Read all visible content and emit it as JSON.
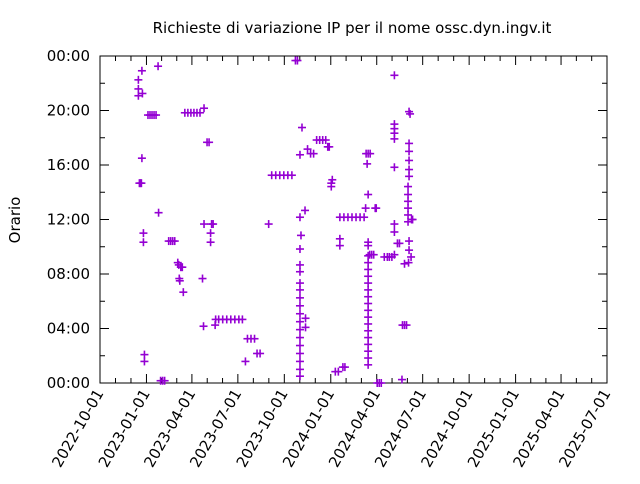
{
  "chart_data": {
    "type": "scatter",
    "title": "Richieste di variazione IP per il nome ossc.dyn.ingv.it",
    "xlabel": "",
    "ylabel": "Orario",
    "x_range": [
      "2022-10-01",
      "2025-07-01"
    ],
    "x_tick_labels": [
      "2022-10-01",
      "2023-01-01",
      "2023-04-01",
      "2023-07-01",
      "2023-10-01",
      "2024-01-01",
      "2024-04-01",
      "2024-07-01",
      "2024-10-01",
      "2025-01-01",
      "2025-04-01",
      "2025-07-01"
    ],
    "y_range": [
      "00:00",
      "24:00"
    ],
    "y_tick_labels": [
      "00:00",
      "04:00",
      "08:00",
      "12:00",
      "16:00",
      "20:00",
      "00:00"
    ],
    "grid": false,
    "legend": "none",
    "point_color": "#9400d3",
    "points": [
      {
        "x": "2022-12-16",
        "y": "22:15"
      },
      {
        "x": "2022-12-16",
        "y": "21:35"
      },
      {
        "x": "2022-12-16",
        "y": "21:05"
      },
      {
        "x": "2022-12-18",
        "y": "14:40"
      },
      {
        "x": "2022-12-20",
        "y": "14:40"
      },
      {
        "x": "2022-12-22",
        "y": "14:40"
      },
      {
        "x": "2022-12-23",
        "y": "22:55"
      },
      {
        "x": "2022-12-24",
        "y": "21:15"
      },
      {
        "x": "2022-12-23",
        "y": "16:30"
      },
      {
        "x": "2022-12-26",
        "y": "11:00"
      },
      {
        "x": "2022-12-26",
        "y": "10:20"
      },
      {
        "x": "2022-12-28",
        "y": "02:05"
      },
      {
        "x": "2022-12-28",
        "y": "01:35"
      },
      {
        "x": "2023-01-04",
        "y": "19:40"
      },
      {
        "x": "2023-01-08",
        "y": "19:40"
      },
      {
        "x": "2023-01-12",
        "y": "19:40"
      },
      {
        "x": "2023-01-16",
        "y": "19:40"
      },
      {
        "x": "2023-01-20",
        "y": "19:40"
      },
      {
        "x": "2023-01-24",
        "y": "23:15"
      },
      {
        "x": "2023-01-25",
        "y": "12:30"
      },
      {
        "x": "2023-01-29",
        "y": "00:10"
      },
      {
        "x": "2023-02-02",
        "y": "00:10"
      },
      {
        "x": "2023-02-06",
        "y": "00:10"
      },
      {
        "x": "2023-02-14",
        "y": "10:25"
      },
      {
        "x": "2023-02-18",
        "y": "10:25"
      },
      {
        "x": "2023-02-22",
        "y": "10:25"
      },
      {
        "x": "2023-02-26",
        "y": "10:25"
      },
      {
        "x": "2023-03-04",
        "y": "08:50"
      },
      {
        "x": "2023-03-06",
        "y": "08:40"
      },
      {
        "x": "2023-03-07",
        "y": "07:40"
      },
      {
        "x": "2023-03-08",
        "y": "07:30"
      },
      {
        "x": "2023-03-10",
        "y": "08:30"
      },
      {
        "x": "2023-03-13",
        "y": "08:30"
      },
      {
        "x": "2023-03-15",
        "y": "06:40"
      },
      {
        "x": "2023-03-18",
        "y": "19:50"
      },
      {
        "x": "2023-03-24",
        "y": "19:50"
      },
      {
        "x": "2023-03-30",
        "y": "19:50"
      },
      {
        "x": "2023-04-05",
        "y": "19:50"
      },
      {
        "x": "2023-04-11",
        "y": "19:50"
      },
      {
        "x": "2023-04-17",
        "y": "19:50"
      },
      {
        "x": "2023-04-25",
        "y": "20:10"
      },
      {
        "x": "2023-04-22",
        "y": "07:40"
      },
      {
        "x": "2023-04-24",
        "y": "04:10"
      },
      {
        "x": "2023-04-25",
        "y": "11:40"
      },
      {
        "x": "2023-05-01",
        "y": "17:40"
      },
      {
        "x": "2023-05-05",
        "y": "17:40"
      },
      {
        "x": "2023-05-08",
        "y": "11:00"
      },
      {
        "x": "2023-05-08",
        "y": "10:20"
      },
      {
        "x": "2023-05-10",
        "y": "11:40"
      },
      {
        "x": "2023-05-13",
        "y": "11:40"
      },
      {
        "x": "2023-05-18",
        "y": "04:40"
      },
      {
        "x": "2023-05-17",
        "y": "04:15"
      },
      {
        "x": "2023-05-24",
        "y": "04:40"
      },
      {
        "x": "2023-06-01",
        "y": "04:40"
      },
      {
        "x": "2023-06-09",
        "y": "04:40"
      },
      {
        "x": "2023-06-17",
        "y": "04:40"
      },
      {
        "x": "2023-06-25",
        "y": "04:40"
      },
      {
        "x": "2023-07-03",
        "y": "04:40"
      },
      {
        "x": "2023-07-10",
        "y": "04:40"
      },
      {
        "x": "2023-07-16",
        "y": "01:35"
      },
      {
        "x": "2023-07-20",
        "y": "03:15"
      },
      {
        "x": "2023-07-27",
        "y": "03:15"
      },
      {
        "x": "2023-08-03",
        "y": "03:15"
      },
      {
        "x": "2023-08-08",
        "y": "02:10"
      },
      {
        "x": "2023-08-14",
        "y": "02:10"
      },
      {
        "x": "2023-08-31",
        "y": "11:40"
      },
      {
        "x": "2023-09-06",
        "y": "15:15"
      },
      {
        "x": "2023-09-14",
        "y": "15:15"
      },
      {
        "x": "2023-09-22",
        "y": "15:15"
      },
      {
        "x": "2023-09-30",
        "y": "15:15"
      },
      {
        "x": "2023-10-08",
        "y": "15:15"
      },
      {
        "x": "2023-10-16",
        "y": "15:15"
      },
      {
        "x": "2023-10-23",
        "y": "23:40"
      },
      {
        "x": "2023-10-27",
        "y": "23:40"
      },
      {
        "x": "2023-11-01",
        "y": "12:10"
      },
      {
        "x": "2023-11-01",
        "y": "16:45"
      },
      {
        "x": "2023-11-01",
        "y": "07:20"
      },
      {
        "x": "2023-11-01",
        "y": "06:50"
      },
      {
        "x": "2023-11-01",
        "y": "06:15"
      },
      {
        "x": "2023-11-01",
        "y": "05:40"
      },
      {
        "x": "2023-11-01",
        "y": "05:05"
      },
      {
        "x": "2023-11-01",
        "y": "04:30"
      },
      {
        "x": "2023-11-01",
        "y": "03:55"
      },
      {
        "x": "2023-11-01",
        "y": "03:20"
      },
      {
        "x": "2023-11-01",
        "y": "02:45"
      },
      {
        "x": "2023-11-01",
        "y": "02:10"
      },
      {
        "x": "2023-11-01",
        "y": "01:35"
      },
      {
        "x": "2023-11-01",
        "y": "01:00"
      },
      {
        "x": "2023-11-01",
        "y": "00:30"
      },
      {
        "x": "2023-11-01",
        "y": "08:40"
      },
      {
        "x": "2023-11-01",
        "y": "08:10"
      },
      {
        "x": "2023-11-01",
        "y": "09:50"
      },
      {
        "x": "2023-11-03",
        "y": "10:50"
      },
      {
        "x": "2023-11-05",
        "y": "18:45"
      },
      {
        "x": "2023-11-11",
        "y": "12:40"
      },
      {
        "x": "2023-11-12",
        "y": "04:45"
      },
      {
        "x": "2023-11-12",
        "y": "04:05"
      },
      {
        "x": "2023-11-16",
        "y": "17:10"
      },
      {
        "x": "2023-11-22",
        "y": "16:50"
      },
      {
        "x": "2023-11-28",
        "y": "16:50"
      },
      {
        "x": "2023-12-04",
        "y": "17:50"
      },
      {
        "x": "2023-12-10",
        "y": "17:50"
      },
      {
        "x": "2023-12-16",
        "y": "17:50"
      },
      {
        "x": "2023-12-22",
        "y": "17:50"
      },
      {
        "x": "2023-12-26",
        "y": "17:20"
      },
      {
        "x": "2023-12-29",
        "y": "17:20"
      },
      {
        "x": "2024-01-02",
        "y": "14:40"
      },
      {
        "x": "2024-01-02",
        "y": "14:25"
      },
      {
        "x": "2024-01-04",
        "y": "14:55"
      },
      {
        "x": "2024-01-10",
        "y": "00:50"
      },
      {
        "x": "2024-01-16",
        "y": "00:50"
      },
      {
        "x": "2024-01-19",
        "y": "10:35"
      },
      {
        "x": "2024-01-19",
        "y": "10:05"
      },
      {
        "x": "2024-01-19",
        "y": "12:10"
      },
      {
        "x": "2024-01-25",
        "y": "01:10"
      },
      {
        "x": "2024-01-29",
        "y": "01:10"
      },
      {
        "x": "2024-01-27",
        "y": "12:10"
      },
      {
        "x": "2024-02-04",
        "y": "12:10"
      },
      {
        "x": "2024-02-12",
        "y": "12:10"
      },
      {
        "x": "2024-02-20",
        "y": "12:10"
      },
      {
        "x": "2024-02-28",
        "y": "12:10"
      },
      {
        "x": "2024-03-07",
        "y": "12:10"
      },
      {
        "x": "2024-03-10",
        "y": "12:50"
      },
      {
        "x": "2024-03-11",
        "y": "16:50"
      },
      {
        "x": "2024-03-15",
        "y": "16:50"
      },
      {
        "x": "2024-03-19",
        "y": "16:50"
      },
      {
        "x": "2024-03-13",
        "y": "16:05"
      },
      {
        "x": "2024-03-15",
        "y": "10:20"
      },
      {
        "x": "2024-03-15",
        "y": "09:20"
      },
      {
        "x": "2024-03-15",
        "y": "08:50"
      },
      {
        "x": "2024-03-15",
        "y": "08:20"
      },
      {
        "x": "2024-03-15",
        "y": "07:50"
      },
      {
        "x": "2024-03-15",
        "y": "07:20"
      },
      {
        "x": "2024-03-15",
        "y": "06:50"
      },
      {
        "x": "2024-03-15",
        "y": "06:20"
      },
      {
        "x": "2024-03-15",
        "y": "05:50"
      },
      {
        "x": "2024-03-15",
        "y": "05:20"
      },
      {
        "x": "2024-03-15",
        "y": "04:50"
      },
      {
        "x": "2024-03-15",
        "y": "04:20"
      },
      {
        "x": "2024-03-15",
        "y": "03:50"
      },
      {
        "x": "2024-03-15",
        "y": "03:20"
      },
      {
        "x": "2024-03-15",
        "y": "02:50"
      },
      {
        "x": "2024-03-15",
        "y": "02:20"
      },
      {
        "x": "2024-03-15",
        "y": "01:50"
      },
      {
        "x": "2024-03-15",
        "y": "01:20"
      },
      {
        "x": "2024-03-15",
        "y": "10:05"
      },
      {
        "x": "2024-03-15",
        "y": "13:50"
      },
      {
        "x": "2024-03-18",
        "y": "09:25"
      },
      {
        "x": "2024-03-22",
        "y": "09:25"
      },
      {
        "x": "2024-03-26",
        "y": "09:25"
      },
      {
        "x": "2024-03-29",
        "y": "12:50"
      },
      {
        "x": "2024-03-31",
        "y": "12:50"
      },
      {
        "x": "2024-04-02",
        "y": "00:00"
      },
      {
        "x": "2024-04-06",
        "y": "00:00"
      },
      {
        "x": "2024-04-10",
        "y": "00:00"
      },
      {
        "x": "2024-04-16",
        "y": "09:15"
      },
      {
        "x": "2024-04-22",
        "y": "09:15"
      },
      {
        "x": "2024-04-26",
        "y": "09:15"
      },
      {
        "x": "2024-05-01",
        "y": "09:15"
      },
      {
        "x": "2024-05-06",
        "y": "09:25"
      },
      {
        "x": "2024-05-06",
        "y": "11:40"
      },
      {
        "x": "2024-05-06",
        "y": "11:05"
      },
      {
        "x": "2024-05-06",
        "y": "19:00"
      },
      {
        "x": "2024-05-06",
        "y": "18:40"
      },
      {
        "x": "2024-05-06",
        "y": "18:20"
      },
      {
        "x": "2024-05-06",
        "y": "17:55"
      },
      {
        "x": "2024-05-06",
        "y": "22:35"
      },
      {
        "x": "2024-05-06",
        "y": "15:50"
      },
      {
        "x": "2024-05-12",
        "y": "10:15"
      },
      {
        "x": "2024-05-16",
        "y": "10:15"
      },
      {
        "x": "2024-05-21",
        "y": "00:15"
      },
      {
        "x": "2024-05-26",
        "y": "08:45"
      },
      {
        "x": "2024-05-22",
        "y": "04:15"
      },
      {
        "x": "2024-05-26",
        "y": "04:15"
      },
      {
        "x": "2024-05-30",
        "y": "04:15"
      },
      {
        "x": "2024-06-02",
        "y": "14:25"
      },
      {
        "x": "2024-06-02",
        "y": "13:50"
      },
      {
        "x": "2024-06-02",
        "y": "13:20"
      },
      {
        "x": "2024-06-02",
        "y": "12:50"
      },
      {
        "x": "2024-06-02",
        "y": "12:20"
      },
      {
        "x": "2024-06-02",
        "y": "11:50"
      },
      {
        "x": "2024-06-04",
        "y": "10:25"
      },
      {
        "x": "2024-06-04",
        "y": "09:45"
      },
      {
        "x": "2024-06-04",
        "y": "19:55"
      },
      {
        "x": "2024-06-06",
        "y": "19:45"
      },
      {
        "x": "2024-06-04",
        "y": "17:35"
      },
      {
        "x": "2024-06-04",
        "y": "17:00"
      },
      {
        "x": "2024-06-04",
        "y": "16:20"
      },
      {
        "x": "2024-06-04",
        "y": "15:40"
      },
      {
        "x": "2024-06-04",
        "y": "15:10"
      },
      {
        "x": "2024-06-09",
        "y": "12:00"
      },
      {
        "x": "2024-06-11",
        "y": "12:00"
      },
      {
        "x": "2024-06-03",
        "y": "08:50"
      },
      {
        "x": "2024-06-08",
        "y": "09:15"
      }
    ]
  }
}
